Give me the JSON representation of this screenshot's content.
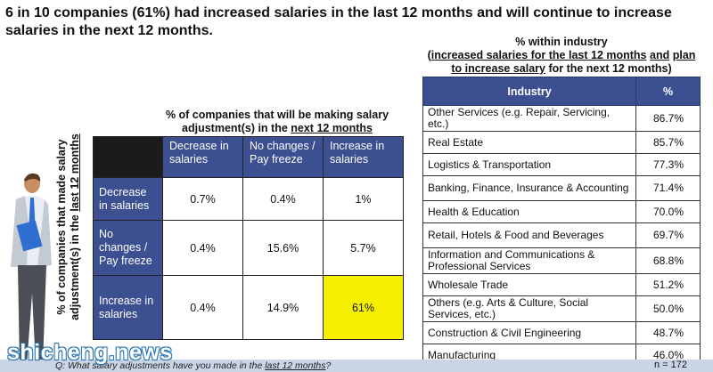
{
  "headline": "6 in 10 companies (61%) had increased salaries in the last 12 months and will continue to increase salaries in the next 12 months.",
  "industry_caption": {
    "line1": "% within industry",
    "open_paren": "(",
    "part_a": "increased salaries for the last 12 months",
    "space1": " ",
    "and": "and",
    "space2": " ",
    "part_b": "plan to increase salary",
    "part_c": " for the next 12 months)"
  },
  "matrix_caption": {
    "line1": "% of companies that will be making salary adjustment(s) in the ",
    "underlined": "next 12 months"
  },
  "y_axis_label": {
    "line1": "% of companies that made salary adjustment(s) in the ",
    "underlined": "last 12 months"
  },
  "footer": {
    "question_prefix": "Q: What salary adjustments have you made in the ",
    "question_underlined": "last 12 months",
    "question_suffix": "?",
    "n": "n = 172"
  },
  "watermark": "shicheng.news",
  "colors": {
    "header_blue": "#3b4f91",
    "highlight_yellow": "#f6f000",
    "corner_black": "#1b1b1b"
  },
  "chart_data": [
    {
      "type": "table",
      "columns": [
        "Decrease in salaries",
        "No changes / Pay freeze",
        "Increase in salaries"
      ],
      "rows": [
        {
          "label": "Decrease in salaries",
          "values": [
            "0.7%",
            "0.4%",
            "1%"
          ]
        },
        {
          "label": "No changes / Pay freeze",
          "values": [
            "0.4%",
            "15.6%",
            "5.7%"
          ]
        },
        {
          "label": "Increase in salaries",
          "values": [
            "0.4%",
            "14.9%",
            "61%"
          ]
        }
      ],
      "highlight": {
        "row": 2,
        "col": 2
      }
    },
    {
      "type": "table",
      "headers": [
        "Industry",
        "%"
      ],
      "rows": [
        {
          "industry": "Other Services (e.g. Repair, Servicing, etc.)",
          "pct": "86.7%"
        },
        {
          "industry": "Real Estate",
          "pct": "85.7%"
        },
        {
          "industry": "Logistics & Transportation",
          "pct": "77.3%"
        },
        {
          "industry": "Banking, Finance, Insurance & Accounting",
          "pct": "71.4%"
        },
        {
          "industry": "Health & Education",
          "pct": "70.0%"
        },
        {
          "industry": "Retail, Hotels & Food and Beverages",
          "pct": "69.7%"
        },
        {
          "industry": "Information and Communications & Professional Services",
          "pct": "68.8%"
        },
        {
          "industry": "Wholesale Trade",
          "pct": "51.2%"
        },
        {
          "industry": "Others (e.g. Arts & Culture, Social Services, etc.)",
          "pct": "50.0%"
        },
        {
          "industry": "Construction & Civil Engineering",
          "pct": "48.7%"
        },
        {
          "industry": "Manufacturing",
          "pct": "46.0%"
        }
      ]
    }
  ]
}
